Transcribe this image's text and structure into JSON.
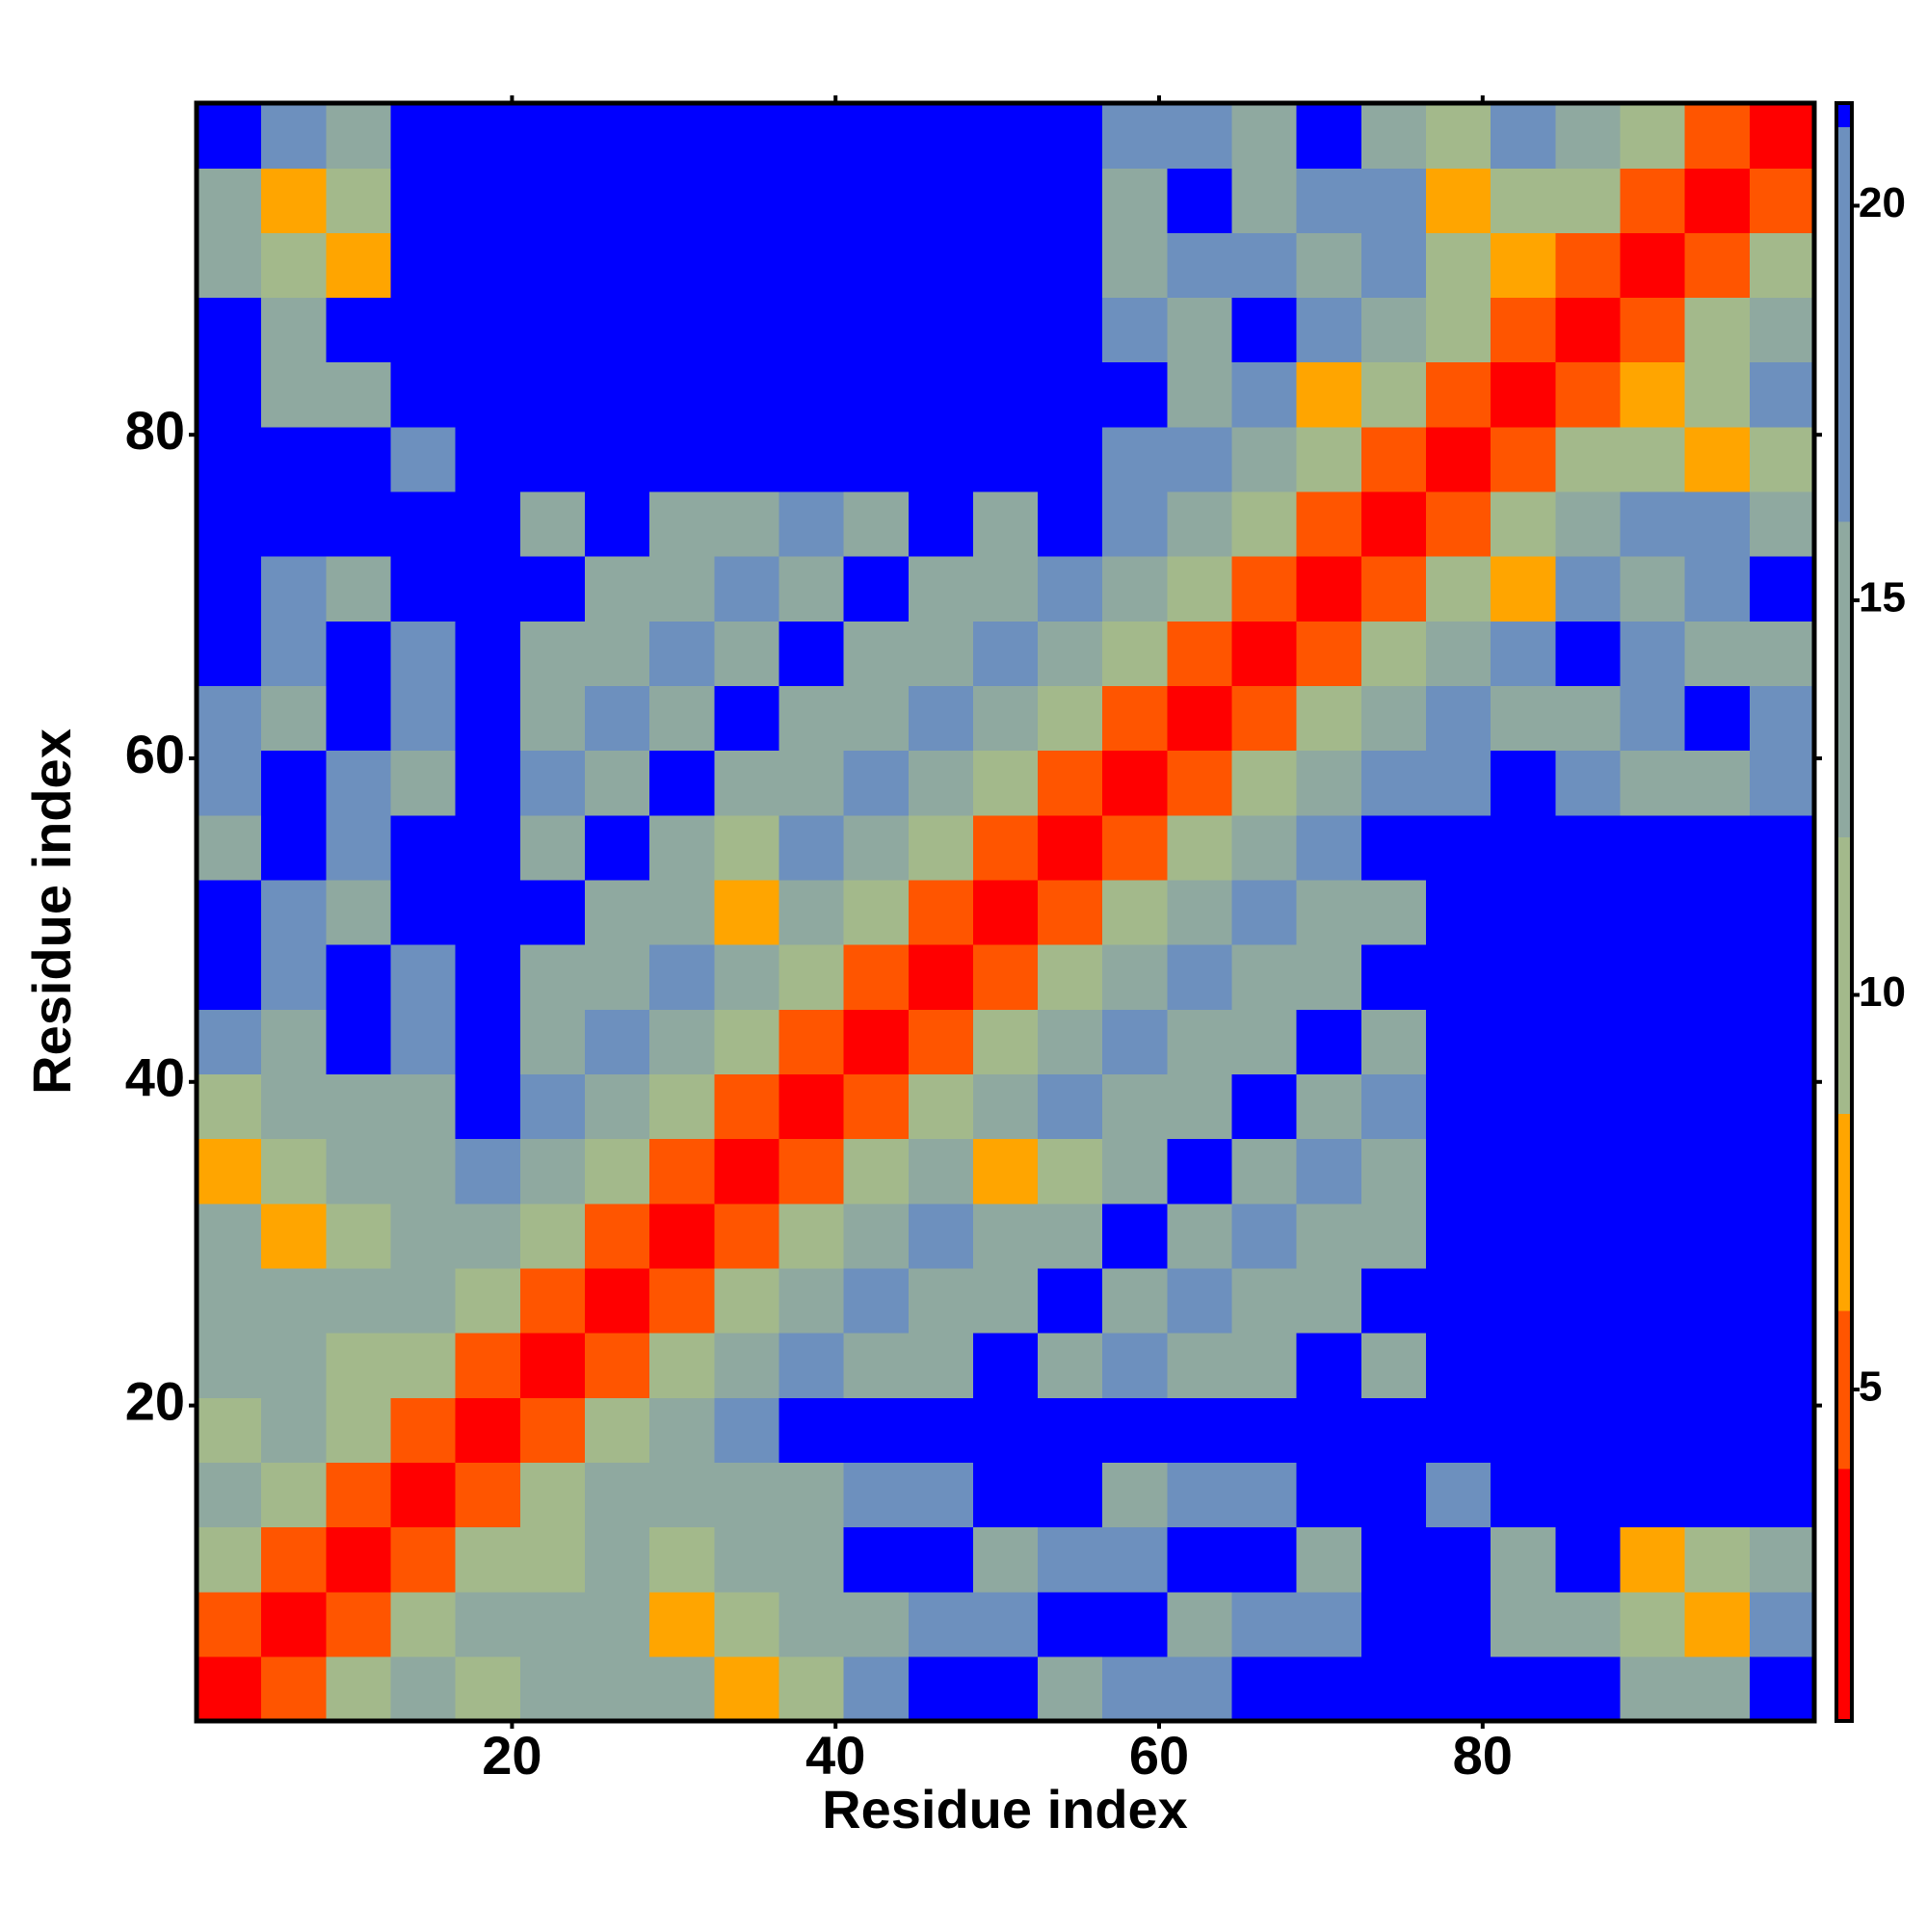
{
  "chart_data": {
    "type": "heatmap",
    "x_label": "Residue index",
    "y_label": "Residue index",
    "x": [
      2.5,
      6.5,
      10.5,
      14.5,
      18.5,
      22.5,
      26.5,
      30.5,
      34.5,
      38.5,
      42.5,
      46.5,
      50.5,
      54.5,
      58.5,
      62.5,
      66.5,
      70.5,
      74.5,
      78.5,
      82.5,
      86.5,
      90.5,
      94.5,
      98.5
    ],
    "y": [
      2.5,
      6.5,
      10.5,
      14.5,
      18.5,
      22.5,
      26.5,
      30.5,
      34.5,
      38.5,
      42.5,
      46.5,
      50.5,
      54.5,
      58.5,
      62.5,
      66.5,
      70.5,
      74.5,
      78.5,
      82.5,
      86.5,
      90.5,
      94.5,
      98.5
    ],
    "z": [
      [
        2,
        6,
        10,
        14,
        12,
        14,
        13,
        15,
        8,
        12,
        17,
        22,
        22,
        16,
        18,
        17,
        22,
        22,
        22,
        22,
        22,
        22,
        16,
        16,
        22
      ],
      [
        6,
        2,
        6,
        10,
        14,
        13,
        15,
        8,
        12,
        14,
        16,
        18,
        17,
        22,
        22,
        16,
        18,
        17,
        22,
        22,
        16,
        15,
        9,
        8,
        17
      ],
      [
        10,
        6,
        2,
        6,
        10,
        9,
        16,
        12,
        14,
        13,
        22,
        22,
        16,
        18,
        17,
        22,
        22,
        16,
        22,
        22,
        16,
        22,
        8,
        12,
        16
      ],
      [
        14,
        10,
        6,
        2,
        6,
        10,
        14,
        14,
        13,
        15,
        18,
        17,
        22,
        22,
        16,
        18,
        17,
        22,
        22,
        17,
        22,
        22,
        22,
        22,
        22
      ],
      [
        12,
        14,
        10,
        6,
        2,
        6,
        10,
        14,
        18,
        22,
        22,
        22,
        22,
        22,
        22,
        22,
        22,
        22,
        22,
        22,
        22,
        22,
        22,
        22,
        22
      ],
      [
        14,
        13,
        9,
        10,
        6,
        2,
        6,
        10,
        14,
        18,
        13,
        16,
        22,
        15,
        17,
        13,
        16,
        22,
        15,
        22,
        22,
        22,
        22,
        22,
        22
      ],
      [
        13,
        15,
        16,
        14,
        10,
        6,
        2,
        6,
        10,
        14,
        18,
        13,
        16,
        22,
        15,
        17,
        13,
        16,
        22,
        22,
        22,
        22,
        22,
        22,
        22
      ],
      [
        15,
        8,
        12,
        14,
        14,
        10,
        6,
        2,
        6,
        10,
        14,
        18,
        13,
        16,
        22,
        15,
        17,
        13,
        16,
        22,
        22,
        22,
        22,
        22,
        22
      ],
      [
        8,
        12,
        14,
        13,
        18,
        14,
        10,
        6,
        2,
        6,
        10,
        14,
        8,
        12,
        16,
        22,
        15,
        17,
        13,
        22,
        22,
        22,
        22,
        22,
        22
      ],
      [
        12,
        14,
        13,
        15,
        22,
        18,
        14,
        10,
        6,
        2,
        6,
        10,
        14,
        18,
        13,
        16,
        22,
        15,
        17,
        22,
        22,
        22,
        22,
        22,
        22
      ],
      [
        17,
        16,
        22,
        18,
        22,
        13,
        18,
        14,
        10,
        6,
        2,
        6,
        10,
        14,
        18,
        13,
        16,
        22,
        15,
        22,
        22,
        22,
        22,
        22,
        22
      ],
      [
        22,
        18,
        22,
        17,
        22,
        16,
        13,
        18,
        14,
        10,
        6,
        2,
        6,
        10,
        14,
        18,
        13,
        16,
        22,
        22,
        22,
        22,
        22,
        22,
        22
      ],
      [
        22,
        17,
        16,
        22,
        22,
        22,
        16,
        13,
        8,
        14,
        10,
        6,
        2,
        6,
        10,
        14,
        18,
        13,
        16,
        22,
        22,
        22,
        22,
        22,
        22
      ],
      [
        16,
        22,
        18,
        22,
        22,
        15,
        22,
        16,
        12,
        18,
        14,
        10,
        6,
        2,
        6,
        10,
        14,
        18,
        22,
        22,
        22,
        22,
        22,
        22,
        22
      ],
      [
        18,
        22,
        17,
        16,
        22,
        17,
        15,
        22,
        16,
        13,
        18,
        14,
        10,
        6,
        2,
        6,
        10,
        14,
        18,
        17,
        22,
        18,
        15,
        16,
        17
      ],
      [
        17,
        16,
        22,
        18,
        22,
        13,
        17,
        15,
        22,
        16,
        13,
        18,
        14,
        10,
        6,
        2,
        6,
        10,
        14,
        18,
        15,
        16,
        17,
        22,
        18
      ],
      [
        22,
        18,
        22,
        17,
        22,
        16,
        13,
        17,
        15,
        22,
        16,
        13,
        18,
        14,
        10,
        6,
        2,
        6,
        10,
        14,
        18,
        22,
        18,
        15,
        16
      ],
      [
        22,
        17,
        16,
        22,
        22,
        22,
        16,
        13,
        17,
        15,
        22,
        16,
        13,
        18,
        14,
        10,
        6,
        2,
        6,
        10,
        8,
        18,
        16,
        17,
        22
      ],
      [
        22,
        22,
        22,
        22,
        22,
        15,
        22,
        16,
        13,
        17,
        15,
        22,
        16,
        22,
        18,
        14,
        10,
        6,
        2,
        6,
        10,
        14,
        18,
        18,
        16
      ],
      [
        22,
        22,
        22,
        17,
        22,
        22,
        22,
        22,
        22,
        22,
        22,
        22,
        22,
        22,
        17,
        18,
        14,
        10,
        6,
        2,
        6,
        10,
        11,
        7,
        12
      ],
      [
        22,
        16,
        16,
        22,
        22,
        22,
        22,
        22,
        22,
        22,
        22,
        22,
        22,
        22,
        22,
        15,
        18,
        8,
        10,
        6,
        2,
        6,
        7,
        10,
        18
      ],
      [
        22,
        15,
        22,
        22,
        22,
        22,
        22,
        22,
        22,
        22,
        22,
        22,
        22,
        22,
        18,
        16,
        22,
        18,
        14,
        10,
        6,
        2,
        6,
        10,
        14
      ],
      [
        16,
        9,
        8,
        22,
        22,
        22,
        22,
        22,
        22,
        22,
        22,
        22,
        22,
        22,
        15,
        17,
        18,
        16,
        18,
        11,
        7,
        6,
        2,
        6,
        10
      ],
      [
        16,
        8,
        12,
        22,
        22,
        22,
        22,
        22,
        22,
        22,
        22,
        22,
        22,
        22,
        16,
        22,
        15,
        17,
        18,
        7,
        10,
        10,
        6,
        2,
        6
      ],
      [
        22,
        17,
        16,
        22,
        22,
        22,
        22,
        22,
        22,
        22,
        22,
        22,
        22,
        22,
        17,
        18,
        16,
        22,
        16,
        12,
        18,
        14,
        10,
        6,
        2
      ]
    ],
    "xlim": [
      0.5,
      100.5
    ],
    "ylim": [
      0.5,
      100.5
    ],
    "xticks": [
      20,
      40,
      60,
      80
    ],
    "yticks": [
      20,
      40,
      60,
      80
    ],
    "color_levels": [
      [
        4,
        "#ff0000"
      ],
      [
        6,
        "#ff5500"
      ],
      [
        8.5,
        "#ffa500"
      ],
      [
        12,
        "#a3b98b"
      ],
      [
        16,
        "#8fa9a0"
      ],
      [
        21,
        "#6d90be"
      ],
      [
        22,
        "#0000ff"
      ]
    ],
    "clim": [
      0.8,
      21.3
    ],
    "cticks": [
      5,
      10,
      15,
      20
    ]
  }
}
